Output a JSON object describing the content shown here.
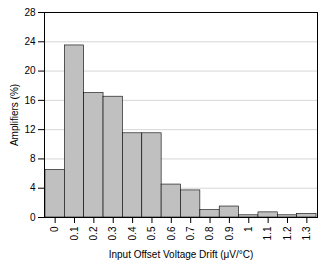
{
  "chart_data": {
    "type": "bar",
    "x": [
      0.0,
      0.1,
      0.2,
      0.3,
      0.4,
      0.5,
      0.6,
      0.7,
      0.8,
      0.9,
      1.0,
      1.1,
      1.2,
      1.3
    ],
    "values": [
      6.5,
      23.5,
      17.0,
      16.5,
      11.5,
      11.5,
      4.5,
      3.7,
      1.0,
      1.5,
      0.3,
      0.7,
      0.3,
      0.5
    ],
    "color": "#c0c0c0",
    "xlabel": "Input Offset Voltage Drift (μV/°C)",
    "ylabel": "Amplifiers (%)",
    "xlim": [
      -0.055,
      1.355
    ],
    "xticks": [
      0,
      0.1,
      0.2,
      0.3,
      0.4,
      0.5,
      0.6,
      0.7,
      0.8,
      0.9,
      1,
      1.1,
      1.2,
      1.3
    ],
    "ylim": [
      0,
      28
    ],
    "yticks": [
      0,
      4,
      8,
      12,
      16,
      20,
      24,
      28
    ],
    "grid": true
  }
}
